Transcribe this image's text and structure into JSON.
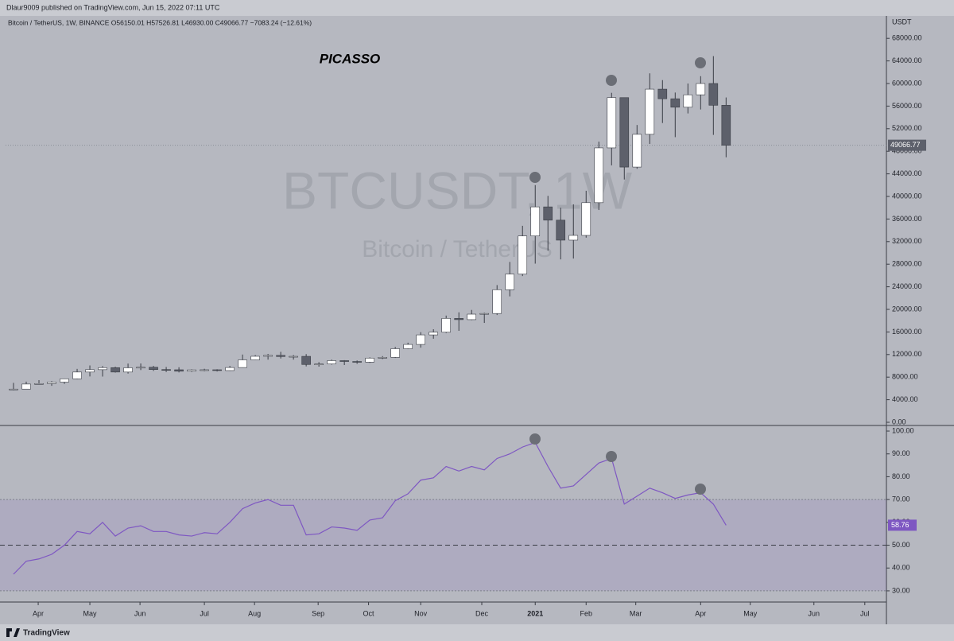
{
  "header": {
    "publisher": "Dlaur9009 published on TradingView.com, Jun 15, 2022 07:11 UTC",
    "legend": "Bitcoin / TetherUS, 1W, BINANCE  O56150.01 H57526.81 L46930.00 C49066.77 −7083.24 (−12.61%)",
    "watermark": "BTCUSDT, 1W",
    "watermark_sub": "Bitcoin / TetherUS",
    "annotation": "PICASSO",
    "unit": "USDT"
  },
  "footer": {
    "brand": "TradingView"
  },
  "chart_data": [
    {
      "type": "candlestick",
      "up_color": "#ffffff",
      "down_color": "#5d606b",
      "wick_color": "#3a3d45",
      "x": [
        0,
        1,
        2,
        3,
        4,
        5,
        6,
        7,
        8,
        9,
        10,
        11,
        12,
        13,
        14,
        15,
        16,
        17,
        18,
        19,
        20,
        21,
        22,
        23,
        24,
        25,
        26,
        27,
        28,
        29,
        30,
        31,
        32,
        33,
        34,
        35,
        36,
        37,
        38,
        39,
        40,
        41,
        42,
        43,
        44,
        45,
        46,
        47,
        48,
        49,
        50,
        51,
        52,
        53,
        54,
        55,
        56
      ],
      "open": [
        5816,
        5881,
        6775,
        6860,
        7120,
        7700,
        8900,
        9320,
        9680,
        8900,
        9650,
        9750,
        9340,
        9300,
        9050,
        9280,
        9300,
        9160,
        9700,
        11050,
        11690,
        11850,
        11650,
        11680,
        10240,
        10330,
        10920,
        10770,
        10660,
        11370,
        11500,
        13030,
        13790,
        15480,
        15960,
        18400,
        18180,
        19150,
        19270,
        23480,
        26250,
        33000,
        38150,
        35800,
        32260,
        33100,
        38900,
        48600,
        57500,
        45200,
        51000,
        59000,
        57300,
        55800,
        58000,
        60000,
        56150.01
      ],
      "high": [
        6985,
        7200,
        7470,
        7300,
        7750,
        9460,
        10067,
        9960,
        9850,
        10400,
        10420,
        9990,
        9800,
        9750,
        9380,
        9480,
        9390,
        9980,
        12000,
        11900,
        12100,
        12480,
        11900,
        12080,
        10650,
        11100,
        11000,
        10950,
        11500,
        11720,
        13350,
        14100,
        15960,
        16480,
        18900,
        19480,
        19900,
        19400,
        24300,
        28400,
        34800,
        42000,
        40100,
        38000,
        38600,
        41000,
        49700,
        58350,
        57500,
        52650,
        61800,
        60600,
        58400,
        60000,
        61300,
        64850,
        57526.81
      ],
      "low": [
        5670,
        5860,
        6770,
        6460,
        6800,
        7630,
        8120,
        8100,
        8800,
        8630,
        9250,
        9100,
        8900,
        8830,
        8900,
        9050,
        9000,
        9120,
        9650,
        11000,
        11100,
        11300,
        11100,
        9900,
        9860,
        10200,
        10140,
        10350,
        10530,
        11200,
        11400,
        12950,
        13220,
        14800,
        15800,
        16200,
        18100,
        17600,
        19000,
        22300,
        25900,
        28100,
        30400,
        28850,
        29000,
        32700,
        37600,
        45500,
        43000,
        44900,
        49300,
        53000,
        50500,
        54700,
        55400,
        50900,
        46930
      ],
      "close": [
        5881,
        6775,
        6860,
        7120,
        7700,
        8900,
        9320,
        9680,
        8900,
        9650,
        9750,
        9340,
        9300,
        9050,
        9280,
        9300,
        9160,
        9700,
        11050,
        11690,
        11850,
        11650,
        11680,
        10240,
        10330,
        10920,
        10770,
        10660,
        11370,
        11500,
        13030,
        13790,
        15480,
        15960,
        18400,
        18180,
        19150,
        19270,
        23480,
        26250,
        33000,
        38150,
        35800,
        32260,
        33100,
        38900,
        48600,
        57500,
        45200,
        51000,
        59000,
        57300,
        55800,
        58000,
        60000,
        56150.01,
        49066.77
      ],
      "last_label": "49066.77",
      "xlim": [
        -0.625,
        68.6
      ],
      "ylim": [
        -423,
        69155
      ],
      "yticks": [
        {
          "value": 0,
          "label": "0.00"
        },
        {
          "value": 4000,
          "label": "4000.00"
        },
        {
          "value": 8000,
          "label": "8000.00"
        },
        {
          "value": 12000,
          "label": "12000.00"
        },
        {
          "value": 16000,
          "label": "16000.00"
        },
        {
          "value": 20000,
          "label": "20000.00"
        },
        {
          "value": 24000,
          "label": "24000.00"
        },
        {
          "value": 28000,
          "label": "28000.00"
        },
        {
          "value": 32000,
          "label": "32000.00"
        },
        {
          "value": 36000,
          "label": "36000.00"
        },
        {
          "value": 40000,
          "label": "40000.00"
        },
        {
          "value": 44000,
          "label": "44000.00"
        },
        {
          "value": 48000,
          "label": "48000.00"
        },
        {
          "value": 52000,
          "label": "52000.00"
        },
        {
          "value": 56000,
          "label": "56000.00"
        },
        {
          "value": 60000,
          "label": "60000.00"
        },
        {
          "value": 64000,
          "label": "64000.00"
        },
        {
          "value": 68000,
          "label": "68000.00"
        }
      ]
    },
    {
      "type": "line",
      "color": "#7e57c2",
      "values": [
        37.3,
        43,
        44,
        46,
        50,
        56,
        55,
        60,
        54,
        57.5,
        58.5,
        56,
        56,
        54.5,
        54,
        55.5,
        55,
        60,
        66,
        68.5,
        70,
        67.5,
        67.5,
        54.5,
        55,
        58,
        57.5,
        56.5,
        61,
        62,
        69.5,
        72.5,
        78.5,
        79.5,
        84.5,
        82.5,
        84.5,
        83,
        88,
        90,
        93,
        95,
        84.5,
        75,
        76,
        81,
        86,
        88,
        68,
        71.5,
        75,
        73,
        70.5,
        72,
        73,
        68,
        58.76
      ],
      "last_label": "58.76",
      "band": [
        30,
        70
      ],
      "midline": 50,
      "xlim": [
        -0.625,
        68.6
      ],
      "ylim": [
        25.1,
        102.1
      ],
      "yticks": [
        {
          "value": 30,
          "label": "30.00"
        },
        {
          "value": 40,
          "label": "40.00"
        },
        {
          "value": 50,
          "label": "50.00"
        },
        {
          "value": 60,
          "label": "60.00"
        },
        {
          "value": 70,
          "label": "70.00"
        },
        {
          "value": 80,
          "label": "80.00"
        },
        {
          "value": 90,
          "label": "90.00"
        },
        {
          "value": 100,
          "label": "100.00"
        }
      ],
      "xticks": [
        {
          "value": 1.94,
          "label": "Apr"
        },
        {
          "value": 6,
          "label": "May"
        },
        {
          "value": 9.94,
          "label": "Jun"
        },
        {
          "value": 15,
          "label": "Jul"
        },
        {
          "value": 18.94,
          "label": "Aug"
        },
        {
          "value": 23.94,
          "label": "Sep"
        },
        {
          "value": 27.9,
          "label": "Oct"
        },
        {
          "value": 32,
          "label": "Nov"
        },
        {
          "value": 36.8,
          "label": "Dec"
        },
        {
          "value": 41,
          "label": "2021"
        },
        {
          "value": 45,
          "label": "Feb"
        },
        {
          "value": 48.9,
          "label": "Mar"
        },
        {
          "value": 54,
          "label": "Apr"
        },
        {
          "value": 57.9,
          "label": "May"
        },
        {
          "value": 62.9,
          "label": "Jun"
        },
        {
          "value": 66.9,
          "label": "Jul"
        }
      ]
    }
  ]
}
